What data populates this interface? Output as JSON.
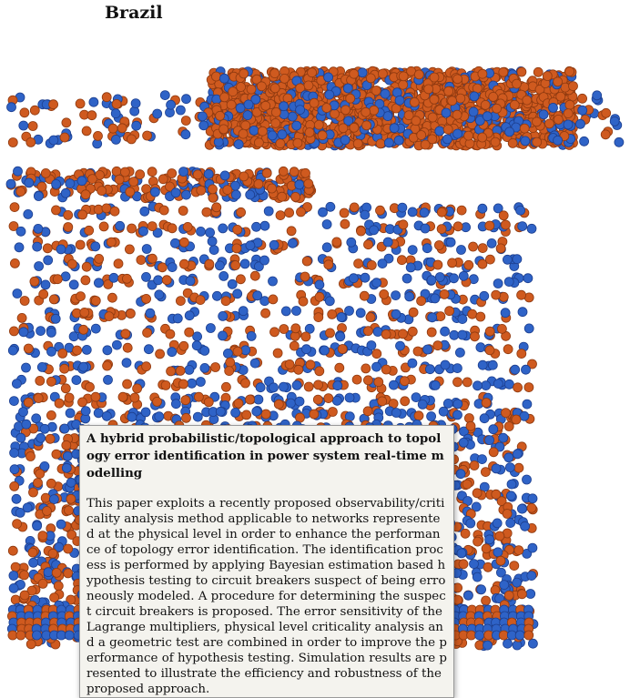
{
  "header": {
    "country": "Brazil"
  },
  "graph": {
    "colors": {
      "node_blue": "#2f63c7",
      "node_blue_edge": "#1d3f8f",
      "node_orange": "#cf5a1f",
      "node_orange_edge": "#8f3a10"
    }
  },
  "tooltip": {
    "title": "A hybrid probabilistic/topological approach to topology error identification in power system real-time modelling",
    "abstract": "This paper exploits a recently proposed observability/criticality analysis method applicable to networks represented at the physical level in order to enhance the performance of topology error identification. The identification process is performed by applying Bayesian estimation based hypothesis testing to circuit breakers suspect of being erroneously modeled. A procedure for determining the suspect circuit breakers is proposed. The error sensitivity of the Lagrange multipliers, physical level criticality analysis and a geometric test are combined in order to improve the performance of hypothesis testing. Simulation results are presented to illustrate the efficiency and robustness of the proposed approach."
  }
}
